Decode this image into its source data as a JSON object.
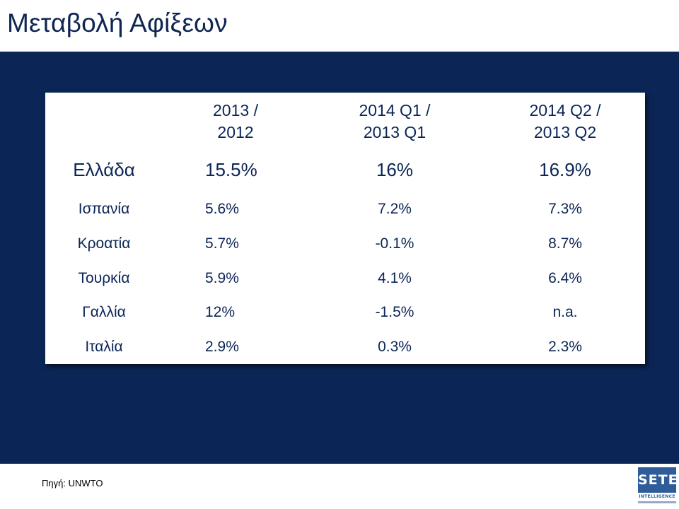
{
  "title": "Μεταβολή Αφίξεων",
  "table": {
    "headers": [
      [
        "2013 /",
        "2012"
      ],
      [
        "2014 Q1 /",
        "2013 Q1"
      ],
      [
        "2014 Q2 /",
        "2013 Q2"
      ]
    ],
    "rows": [
      {
        "country": "Ελλάδα",
        "values": [
          "15.5%",
          "16%",
          "16.9%"
        ]
      },
      {
        "country": "Ισπανία",
        "values": [
          "5.6%",
          "7.2%",
          "7.3%"
        ]
      },
      {
        "country": "Κροατία",
        "values": [
          "5.7%",
          "-0.1%",
          "8.7%"
        ]
      },
      {
        "country": "Τουρκία",
        "values": [
          "5.9%",
          "4.1%",
          "6.4%"
        ]
      },
      {
        "country": "Γαλλία",
        "values": [
          "12%",
          "-1.5%",
          "n.a."
        ]
      },
      {
        "country": "Ιταλία",
        "values": [
          "2.9%",
          "0.3%",
          "2.3%"
        ]
      }
    ]
  },
  "source": "Πηγή: UNWTO",
  "logo": {
    "name": "SETE",
    "subtitle": "INTELLIGENCE"
  },
  "colors": {
    "navy": "#0b2556",
    "title": "#0f2553",
    "logo_blue": "#2f5d9a"
  }
}
